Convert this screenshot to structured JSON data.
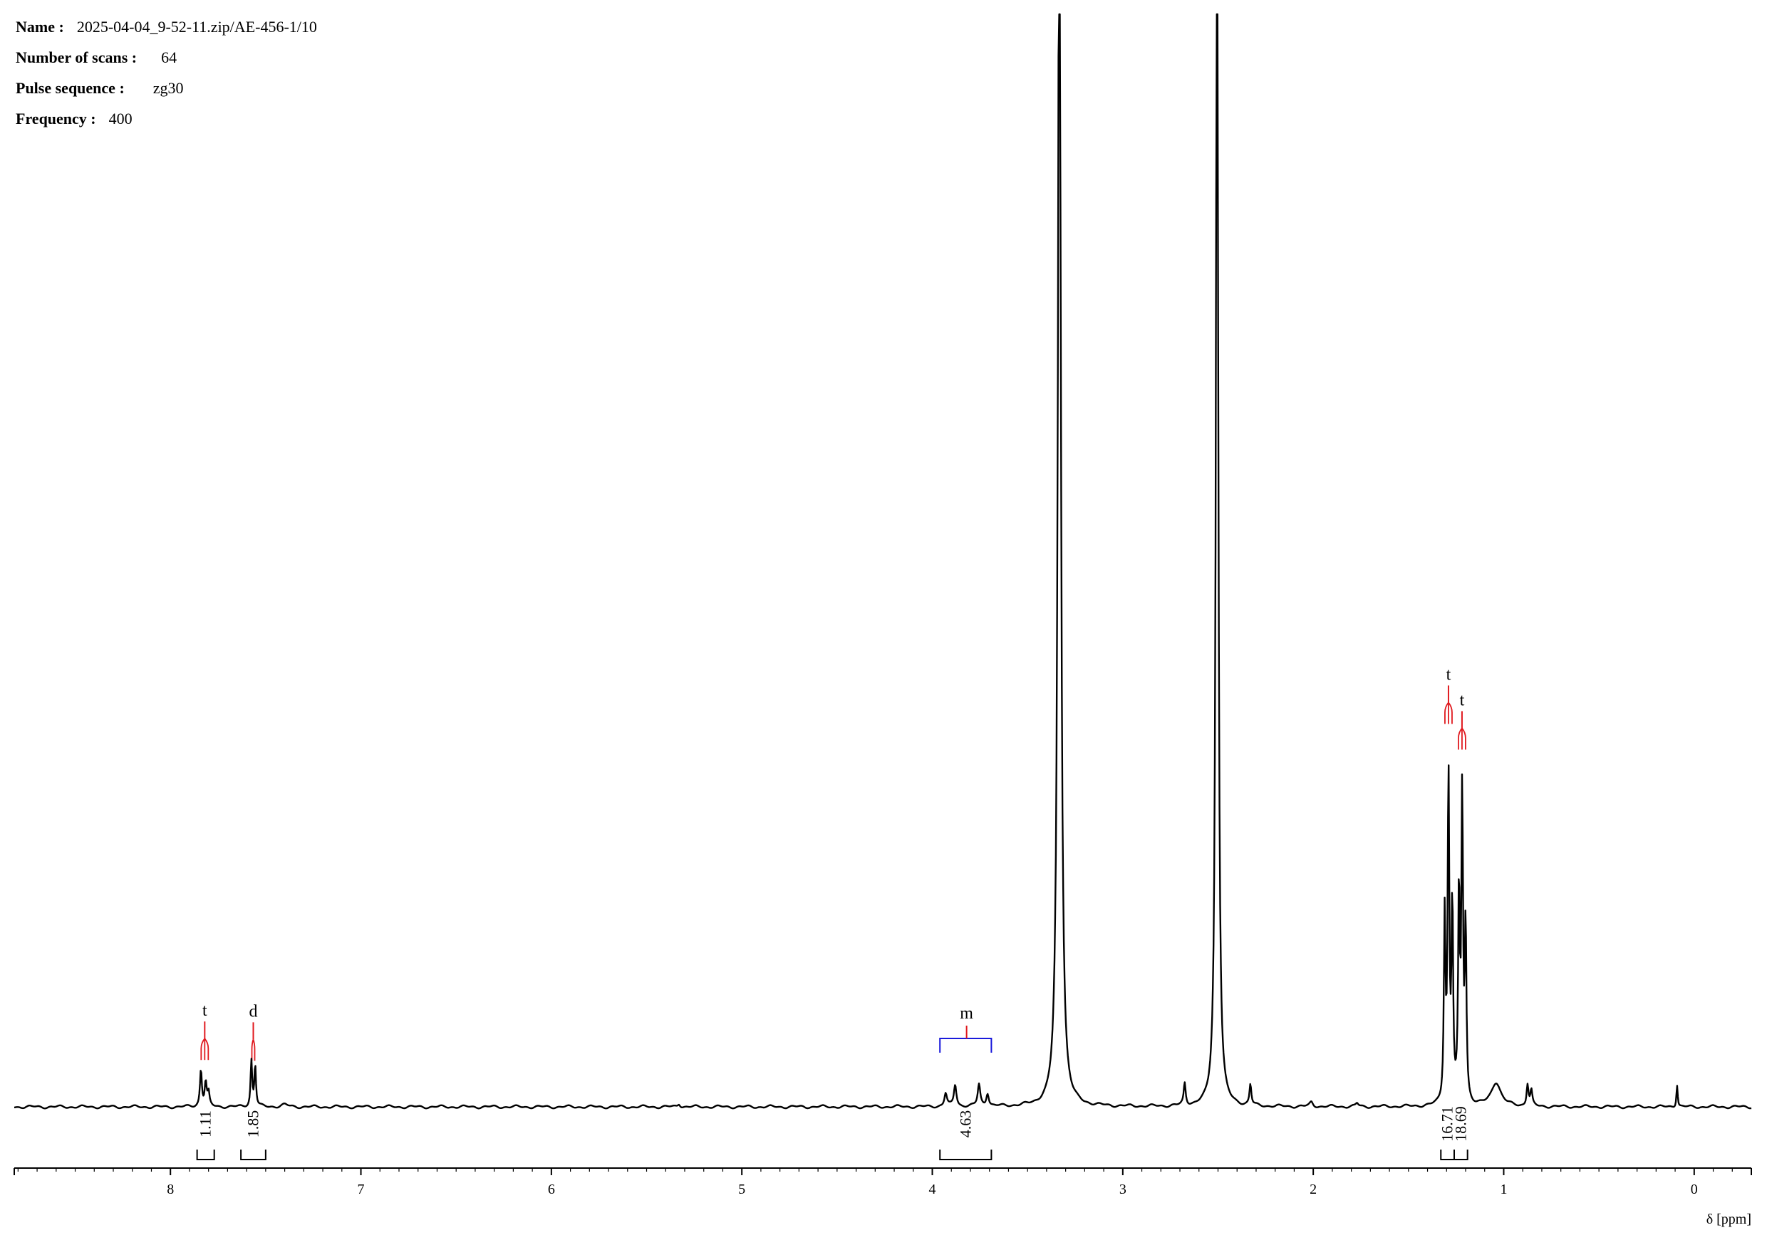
{
  "header": {
    "name_key": "Name :",
    "name_val": "2025-04-04_9-52-11.zip/AE-456-1/10",
    "scans_key": "Number of scans :",
    "scans_val": "64",
    "pulse_key": "Pulse sequence :",
    "pulse_val": "zg30",
    "freq_key": "Frequency :",
    "freq_val": "400"
  },
  "colors": {
    "trace": "#000000",
    "multiplet": "#e0191e",
    "bracket": "#1a1adb"
  },
  "chart_data": {
    "type": "line",
    "title": "",
    "xlabel": "δ [ppm]",
    "ylabel": "",
    "xlim": [
      8.82,
      -0.3
    ],
    "x_reversed": true,
    "ylim": [
      0,
      1
    ],
    "ticks": [
      "8",
      "7",
      "6",
      "5",
      "4",
      "3",
      "2",
      "1",
      "0"
    ],
    "tick_values": [
      8,
      7,
      6,
      5,
      4,
      3,
      2,
      1,
      0
    ],
    "grid": false,
    "series": [
      {
        "peaks": [
          {
            "ppm": 7.84,
            "height": 0.034,
            "width": 0.006
          },
          {
            "ppm": 7.815,
            "height": 0.022,
            "width": 0.006
          },
          {
            "ppm": 7.8,
            "height": 0.012,
            "width": 0.006
          },
          {
            "ppm": 7.575,
            "height": 0.042,
            "width": 0.005
          },
          {
            "ppm": 7.555,
            "height": 0.038,
            "width": 0.005
          },
          {
            "ppm": 7.4,
            "height": 0.002,
            "width": 0.02
          },
          {
            "ppm": 5.33,
            "height": 0.003,
            "width": 0.008
          },
          {
            "ppm": 3.93,
            "height": 0.012,
            "width": 0.008
          },
          {
            "ppm": 3.88,
            "height": 0.02,
            "width": 0.008
          },
          {
            "ppm": 3.755,
            "height": 0.02,
            "width": 0.008
          },
          {
            "ppm": 3.71,
            "height": 0.012,
            "width": 0.008
          },
          {
            "ppm": 3.333,
            "height": 1.2,
            "width": 0.009
          },
          {
            "ppm": 2.675,
            "height": 0.02,
            "width": 0.006
          },
          {
            "ppm": 2.505,
            "height": 1.2,
            "width": 0.007
          },
          {
            "ppm": 2.33,
            "height": 0.019,
            "width": 0.006
          },
          {
            "ppm": 2.01,
            "height": 0.004,
            "width": 0.01
          },
          {
            "ppm": 1.77,
            "height": 0.003,
            "width": 0.008
          },
          {
            "ppm": 1.31,
            "height": 0.17,
            "width": 0.005
          },
          {
            "ppm": 1.29,
            "height": 0.3,
            "width": 0.005
          },
          {
            "ppm": 1.27,
            "height": 0.18,
            "width": 0.005
          },
          {
            "ppm": 1.235,
            "height": 0.19,
            "width": 0.005
          },
          {
            "ppm": 1.218,
            "height": 0.28,
            "width": 0.005
          },
          {
            "ppm": 1.2,
            "height": 0.16,
            "width": 0.005
          },
          {
            "ppm": 1.04,
            "height": 0.022,
            "width": 0.03
          },
          {
            "ppm": 0.875,
            "height": 0.02,
            "width": 0.006
          },
          {
            "ppm": 0.855,
            "height": 0.014,
            "width": 0.006
          },
          {
            "ppm": 0.09,
            "height": 0.021,
            "width": 0.004
          }
        ]
      }
    ],
    "multiplets": [
      {
        "label": "t",
        "ppm": 7.82,
        "kind": "t"
      },
      {
        "label": "d",
        "ppm": 7.565,
        "kind": "d"
      },
      {
        "label": "m",
        "ppm": 3.82,
        "kind": "m",
        "from": 3.96,
        "to": 3.69
      },
      {
        "label": "t",
        "ppm": 1.29,
        "kind": "t"
      },
      {
        "label": "t",
        "ppm": 1.219,
        "kind": "t"
      }
    ],
    "integrals": [
      {
        "label": "1.11",
        "from": 7.86,
        "to": 7.77
      },
      {
        "label": "1.85",
        "from": 7.63,
        "to": 7.5
      },
      {
        "label": "4.63",
        "from": 3.96,
        "to": 3.69
      },
      {
        "label": "16.71",
        "from": 1.33,
        "to": 1.26
      },
      {
        "label": "18.69",
        "from": 1.26,
        "to": 1.19
      }
    ]
  }
}
